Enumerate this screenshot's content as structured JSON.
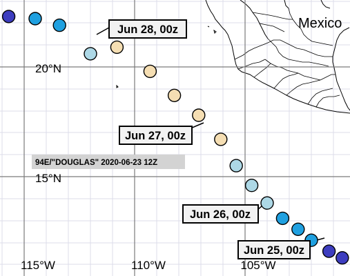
{
  "map": {
    "country_label": "Mexico",
    "storm_label": "94E/\"DOUGLAS\" 2020-06-23 12Z",
    "lon_labels": [
      "115°W",
      "110°W",
      "105°W"
    ],
    "lat_labels": [
      "20°N",
      "15°N"
    ],
    "date_labels": [
      {
        "text": "Jun 28, 00z",
        "lon": -112.0,
        "lat": 20.6
      },
      {
        "text": "Jun 27, 00z",
        "lon": -107.1,
        "lat": 17.7
      },
      {
        "text": "Jun 26, 00z",
        "lon": -104.1,
        "lat": 14.0
      },
      {
        "text": "Jun 25, 00z",
        "lon": -102.6,
        "lat": 12.6
      }
    ],
    "track": [
      {
        "lon": -115.7,
        "lat": 22.3,
        "color": "#3d3dbf"
      },
      {
        "lon": -114.5,
        "lat": 22.2,
        "color": "#1fa0e0"
      },
      {
        "lon": -113.4,
        "lat": 21.9,
        "color": "#1fa0e0"
      },
      {
        "lon": -112.0,
        "lat": 20.6,
        "color": "#add8e6"
      },
      {
        "lon": -110.8,
        "lat": 20.9,
        "color": "#f5deb3"
      },
      {
        "lon": -109.3,
        "lat": 19.8,
        "color": "#f5deb3"
      },
      {
        "lon": -108.2,
        "lat": 18.7,
        "color": "#f5deb3"
      },
      {
        "lon": -107.1,
        "lat": 17.8,
        "color": "#f5deb3"
      },
      {
        "lon": -106.1,
        "lat": 16.7,
        "color": "#f5deb3"
      },
      {
        "lon": -105.4,
        "lat": 15.5,
        "color": "#add8e6"
      },
      {
        "lon": -104.7,
        "lat": 14.6,
        "color": "#add8e6"
      },
      {
        "lon": -104.0,
        "lat": 13.8,
        "color": "#add8e6"
      },
      {
        "lon": -103.3,
        "lat": 13.1,
        "color": "#1fa0e0"
      },
      {
        "lon": -102.6,
        "lat": 12.6,
        "color": "#1fa0e0"
      },
      {
        "lon": -102.0,
        "lat": 12.1,
        "color": "#1fa0e0"
      },
      {
        "lon": -101.2,
        "lat": 11.6,
        "color": "#3d3dbf"
      },
      {
        "lon": -100.6,
        "lat": 11.3,
        "color": "#3d3dbf"
      }
    ]
  }
}
